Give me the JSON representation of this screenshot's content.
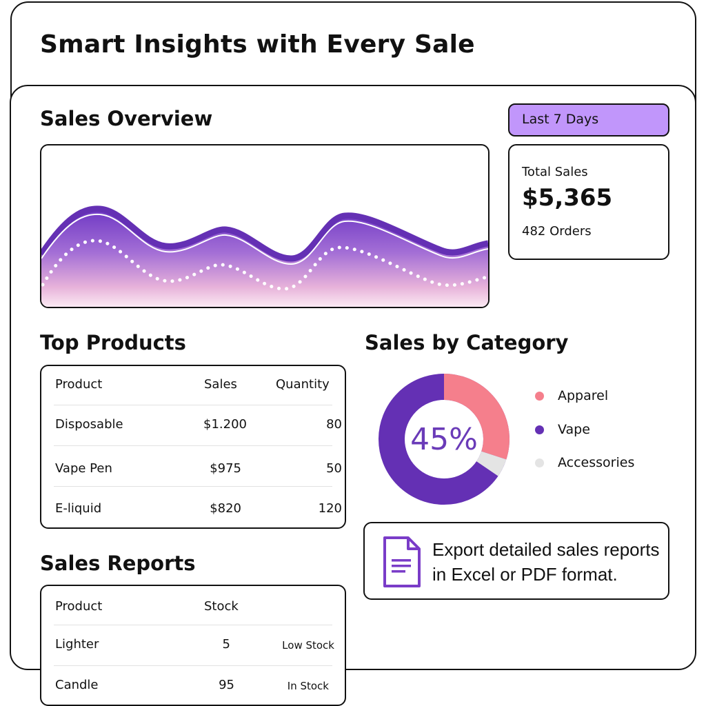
{
  "headline": "Smart Insights with Every Sale",
  "overview": {
    "title": "Sales Overview",
    "period": "Last 7 Days",
    "total_label": "Total Sales",
    "total_value": "$5,365",
    "orders": "482 Orders"
  },
  "top_products": {
    "title": "Top Products",
    "headers": [
      "Product",
      "Sales",
      "Quantity"
    ],
    "rows": [
      {
        "product": "Disposable",
        "sales": "$1.200",
        "quantity": "80"
      },
      {
        "product": "Vape Pen",
        "sales": "$975",
        "quantity": "50"
      },
      {
        "product": "E-liquid",
        "sales": "$820",
        "quantity": "120"
      }
    ]
  },
  "category": {
    "title": "Sales by Category",
    "center_label": "45%",
    "legend": [
      {
        "name": "Apparel",
        "color": "#f57f8c"
      },
      {
        "name": "Vape",
        "color": "#6430b4"
      },
      {
        "name": "Accessories",
        "color": "#e4e4e4"
      }
    ]
  },
  "reports": {
    "title": "Sales Reports",
    "headers": [
      "Product",
      "Stock"
    ],
    "rows": [
      {
        "product": "Lighter",
        "stock": "5",
        "status": "Low Stock"
      },
      {
        "product": "Candle",
        "stock": "95",
        "status": "In Stock"
      }
    ]
  },
  "export": {
    "text_line1": "Export detailed sales reports",
    "text_line2": "in Excel or PDF format.",
    "icon": "document-icon"
  },
  "colors": {
    "accent": "#6430b4",
    "badge": "#c196fb",
    "apparel": "#f57f8c"
  }
}
